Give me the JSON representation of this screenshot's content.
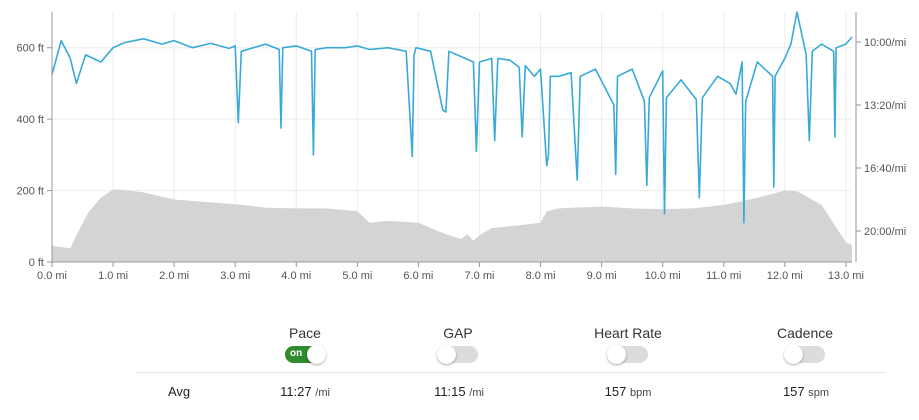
{
  "chart_data": {
    "type": "line",
    "xlabel": "",
    "ylabel": "",
    "x_ticks": [
      "0.0 mi",
      "1.0 mi",
      "2.0 mi",
      "3.0 mi",
      "4.0 mi",
      "5.0 mi",
      "6.0 mi",
      "7.0 mi",
      "8.0 mi",
      "9.0 mi",
      "10.0 mi",
      "11.0 mi",
      "12.0 mi",
      "13.0 mi"
    ],
    "xlim": [
      0,
      13.1
    ],
    "y_left_ticks": [
      "0 ft",
      "200 ft",
      "400 ft",
      "600 ft"
    ],
    "y_left_lim": [
      0,
      700
    ],
    "y_right_ticks": [
      "10:00/mi",
      "13:20/mi",
      "16:40/mi",
      "20:00/mi"
    ],
    "grid": true,
    "series": [
      {
        "kind": "area",
        "color": "#d4d4d4",
        "x": [
          0,
          0.3,
          0.4,
          0.6,
          0.8,
          1.0,
          1.1,
          1.5,
          2.0,
          2.5,
          3.0,
          3.5,
          4.0,
          4.5,
          5.0,
          5.2,
          5.5,
          6.0,
          6.3,
          6.5,
          6.7,
          6.8,
          6.9,
          7.0,
          7.2,
          7.6,
          8.0,
          8.1,
          8.3,
          8.5,
          9.0,
          9.5,
          10.0,
          10.5,
          11.0,
          11.3,
          11.6,
          12.0,
          12.2,
          12.6,
          13.0,
          13.1
        ],
        "values": [
          45,
          38,
          75,
          140,
          180,
          203,
          203,
          195,
          175,
          168,
          162,
          152,
          150,
          150,
          142,
          110,
          115,
          110,
          88,
          75,
          64,
          78,
          60,
          75,
          95,
          102,
          110,
          142,
          150,
          152,
          155,
          150,
          148,
          150,
          160,
          170,
          182,
          200,
          198,
          160,
          55,
          48
        ]
      },
      {
        "kind": "line",
        "color": "#38aad8",
        "x": [
          0,
          0.15,
          0.3,
          0.4,
          0.55,
          0.8,
          1.0,
          1.2,
          1.5,
          1.8,
          2.0,
          2.3,
          2.6,
          2.9,
          3.0,
          3.05,
          3.1,
          3.5,
          3.72,
          3.75,
          3.78,
          4.0,
          4.25,
          4.28,
          4.31,
          4.5,
          4.8,
          5.0,
          5.2,
          5.5,
          5.8,
          5.9,
          5.93,
          5.96,
          6.2,
          6.4,
          6.45,
          6.5,
          6.7,
          6.9,
          6.95,
          7.0,
          7.2,
          7.25,
          7.3,
          7.5,
          7.65,
          7.7,
          7.75,
          7.9,
          8.0,
          8.1,
          8.13,
          8.16,
          8.3,
          8.5,
          8.6,
          8.65,
          8.9,
          9.2,
          9.23,
          9.26,
          9.5,
          9.7,
          9.74,
          9.78,
          10.0,
          10.03,
          10.06,
          10.3,
          10.55,
          10.6,
          10.65,
          10.9,
          11.1,
          11.2,
          11.3,
          11.33,
          11.36,
          11.55,
          11.8,
          11.82,
          11.84,
          12.0,
          12.1,
          12.2,
          12.35,
          12.4,
          12.45,
          12.6,
          12.8,
          12.82,
          12.84,
          13.0,
          13.1
        ],
        "values": [
          525,
          620,
          570,
          500,
          580,
          560,
          600,
          615,
          625,
          610,
          620,
          600,
          612,
          598,
          605,
          390,
          590,
          610,
          595,
          375,
          600,
          605,
          590,
          300,
          595,
          600,
          600,
          605,
          595,
          600,
          590,
          295,
          580,
          600,
          590,
          425,
          420,
          590,
          575,
          560,
          310,
          560,
          570,
          340,
          570,
          565,
          545,
          350,
          550,
          520,
          540,
          270,
          300,
          520,
          520,
          530,
          230,
          520,
          540,
          440,
          245,
          520,
          540,
          450,
          215,
          460,
          535,
          135,
          460,
          510,
          455,
          180,
          460,
          520,
          500,
          470,
          560,
          110,
          450,
          560,
          520,
          210,
          520,
          570,
          610,
          700,
          580,
          340,
          590,
          610,
          590,
          350,
          600,
          610,
          630
        ]
      }
    ]
  },
  "toggles": {
    "pace": {
      "label": "Pace",
      "state": "on",
      "text": "on"
    },
    "gap": {
      "label": "GAP",
      "state": "off"
    },
    "heart_rate": {
      "label": "Heart Rate",
      "state": "off"
    },
    "cadence": {
      "label": "Cadence",
      "state": "off"
    }
  },
  "avg": {
    "label": "Avg",
    "pace_value": "11:27",
    "pace_unit": "/mi",
    "gap_value": "11:15",
    "gap_unit": "/mi",
    "hr_value": "157",
    "hr_unit": "bpm",
    "cadence_value": "157",
    "cadence_unit": "spm"
  }
}
